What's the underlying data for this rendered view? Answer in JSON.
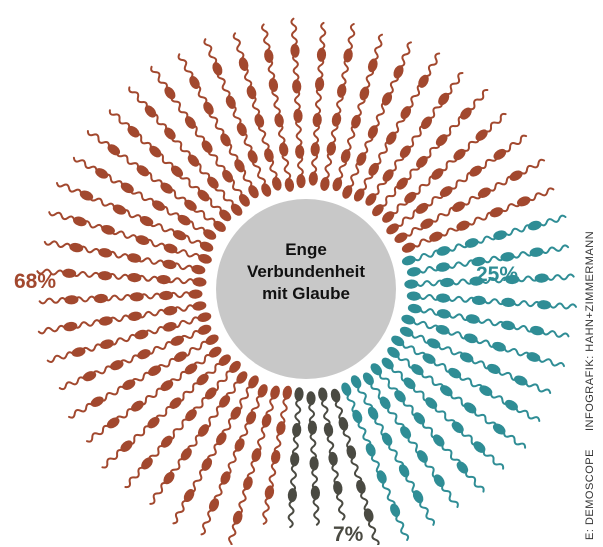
{
  "chart_data": {
    "type": "pie",
    "center_label": [
      "Enge",
      "Verbundenheit",
      "mit Glaube"
    ],
    "slices": [
      {
        "label": "68%",
        "value": 68,
        "color": "#a2482e"
      },
      {
        "label": "25%",
        "value": 25,
        "color": "#2f8d95"
      },
      {
        "label": "7%",
        "value": 7,
        "color": "#4a4a42"
      }
    ],
    "center_color": "#c8c8c8"
  },
  "credit": {
    "source": "E: DEMOSCOPE",
    "graphic": "INFOGRAFIK: HAHN+ZIMMERMANN"
  }
}
